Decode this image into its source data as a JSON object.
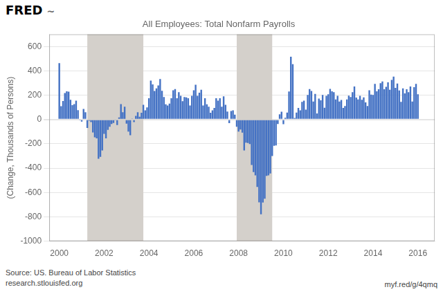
{
  "chart_data": {
    "type": "bar",
    "title": "All Employees: Total Nonfarm Payrolls",
    "y_label": "(Change, Thousands of Persons)",
    "annotations": [
      "FRED",
      "~",
      "Source: US. Bureau of Labor Statistics",
      "research.stlouisfed.org",
      "myf.red/g/4qmq"
    ],
    "color": "#4472c4",
    "grid": true,
    "xlim": [
      1999.55,
      2016.75
    ],
    "xticks": [
      2000,
      2002,
      2004,
      2006,
      2008,
      2010,
      2012,
      2014,
      2016
    ],
    "ylim": [
      -1000,
      700
    ],
    "yticks": [
      -1000,
      -800,
      -600,
      -400,
      -200,
      0,
      200,
      400,
      600
    ],
    "spans": [
      {
        "start": 2001.25,
        "end": 2003.75,
        "color": "#d4d0cb"
      },
      {
        "start": 2007.917,
        "end": 2009.5,
        "color": "#d4d0cb"
      }
    ],
    "x": [
      2000.0,
      2000.083,
      2000.167,
      2000.25,
      2000.333,
      2000.417,
      2000.5,
      2000.583,
      2000.667,
      2000.75,
      2000.833,
      2000.917,
      2001.0,
      2001.083,
      2001.167,
      2001.25,
      2001.333,
      2001.417,
      2001.5,
      2001.583,
      2001.667,
      2001.75,
      2001.833,
      2001.917,
      2002.0,
      2002.083,
      2002.167,
      2002.25,
      2002.333,
      2002.417,
      2002.5,
      2002.583,
      2002.667,
      2002.75,
      2002.833,
      2002.917,
      2003.0,
      2003.083,
      2003.167,
      2003.25,
      2003.333,
      2003.417,
      2003.5,
      2003.583,
      2003.667,
      2003.75,
      2003.833,
      2003.917,
      2004.0,
      2004.083,
      2004.167,
      2004.25,
      2004.333,
      2004.417,
      2004.5,
      2004.583,
      2004.667,
      2004.75,
      2004.833,
      2004.917,
      2005.0,
      2005.083,
      2005.167,
      2005.25,
      2005.333,
      2005.417,
      2005.5,
      2005.583,
      2005.667,
      2005.75,
      2005.833,
      2005.917,
      2006.0,
      2006.083,
      2006.167,
      2006.25,
      2006.333,
      2006.417,
      2006.5,
      2006.583,
      2006.667,
      2006.75,
      2006.833,
      2006.917,
      2007.0,
      2007.083,
      2007.167,
      2007.25,
      2007.333,
      2007.417,
      2007.5,
      2007.583,
      2007.667,
      2007.75,
      2007.833,
      2007.917,
      2008.0,
      2008.083,
      2008.167,
      2008.25,
      2008.333,
      2008.417,
      2008.5,
      2008.583,
      2008.667,
      2008.75,
      2008.833,
      2008.917,
      2009.0,
      2009.083,
      2009.167,
      2009.25,
      2009.333,
      2009.417,
      2009.5,
      2009.583,
      2009.667,
      2009.75,
      2009.833,
      2009.917,
      2010.0,
      2010.083,
      2010.167,
      2010.25,
      2010.333,
      2010.417,
      2010.5,
      2010.583,
      2010.667,
      2010.75,
      2010.833,
      2010.917,
      2011.0,
      2011.083,
      2011.167,
      2011.25,
      2011.333,
      2011.417,
      2011.5,
      2011.583,
      2011.667,
      2011.75,
      2011.833,
      2011.917,
      2012.0,
      2012.083,
      2012.167,
      2012.25,
      2012.333,
      2012.417,
      2012.5,
      2012.583,
      2012.667,
      2012.75,
      2012.833,
      2012.917,
      2013.0,
      2013.083,
      2013.167,
      2013.25,
      2013.333,
      2013.417,
      2013.5,
      2013.583,
      2013.667,
      2013.75,
      2013.833,
      2013.917,
      2014.0,
      2014.083,
      2014.167,
      2014.25,
      2014.333,
      2014.417,
      2014.5,
      2014.583,
      2014.667,
      2014.75,
      2014.833,
      2014.917,
      2015.0,
      2015.083,
      2015.167,
      2015.25,
      2015.333,
      2015.417,
      2015.5,
      2015.583,
      2015.667,
      2015.75,
      2015.833,
      2015.917,
      2016.0
    ],
    "values": [
      463,
      109,
      152,
      218,
      231,
      228,
      162,
      118,
      127,
      155,
      77,
      -5,
      -17,
      86,
      60,
      -70,
      -10,
      -21,
      -107,
      -147,
      -155,
      -323,
      -307,
      -254,
      -118,
      -155,
      -86,
      -60,
      -37,
      -28,
      -5,
      -45,
      17,
      127,
      60,
      105,
      -35,
      -100,
      -130,
      7,
      -22,
      30,
      60,
      23,
      55,
      120,
      75,
      100,
      175,
      320,
      288,
      235,
      256,
      280,
      332,
      236,
      185,
      125,
      115,
      130,
      175,
      240,
      250,
      175,
      225,
      195,
      150,
      185,
      182,
      175,
      115,
      195,
      240,
      285,
      195,
      220,
      245,
      115,
      175,
      125,
      105,
      55,
      75,
      95,
      175,
      155,
      175,
      105,
      190,
      120,
      65,
      -30,
      70,
      75,
      40,
      -60,
      -100,
      -82,
      -108,
      -255,
      -190,
      -193,
      -202,
      -374,
      -432,
      -460,
      -554,
      -681,
      -779,
      -683,
      -651,
      -464,
      -460,
      -443,
      -300,
      -216,
      -213,
      -37,
      42,
      64,
      -38,
      14,
      56,
      230,
      516,
      455,
      12,
      56,
      95,
      75,
      145,
      155,
      81,
      202,
      250,
      235,
      148,
      210,
      50,
      172,
      158,
      202,
      97,
      195,
      208,
      252,
      232,
      225,
      165,
      195,
      148,
      160,
      95,
      110,
      165,
      196,
      185,
      225,
      272,
      180,
      165,
      195,
      162,
      182,
      140,
      110,
      240,
      205,
      202,
      293,
      232,
      248,
      298,
      312,
      248,
      268,
      305,
      245,
      325,
      352,
      260,
      295,
      238,
      145,
      255,
      215,
      248,
      225,
      272,
      148,
      265,
      292,
      208
    ]
  }
}
